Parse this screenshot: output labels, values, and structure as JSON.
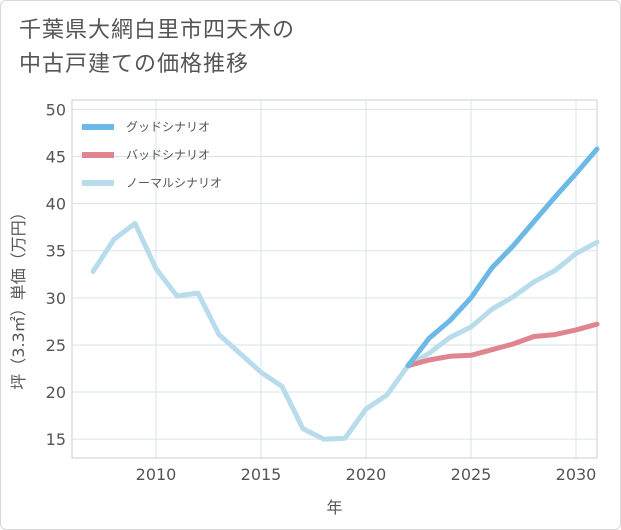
{
  "title_line1": "千葉県大網白里市四天木の",
  "title_line2": "中古戸建ての価格推移",
  "chart_data": {
    "type": "line",
    "title": "千葉県大網白里市四天木の中古戸建ての価格推移",
    "xlabel": "年",
    "ylabel": "坪（3.3㎡）単価（万円）",
    "xlim": [
      2006,
      2031
    ],
    "ylim": [
      13,
      51
    ],
    "x_ticks": [
      2010,
      2015,
      2020,
      2025,
      2030
    ],
    "y_ticks": [
      15,
      20,
      25,
      30,
      35,
      40,
      45,
      50
    ],
    "legend_position": "top-left",
    "series": [
      {
        "name": "グッドシナリオ",
        "color": "#6cb8e6",
        "x": [
          2022,
          2023,
          2024,
          2025,
          2026,
          2027,
          2028,
          2029,
          2030,
          2031
        ],
        "y": [
          22.8,
          25.7,
          27.6,
          30.0,
          33.2,
          35.5,
          38.1,
          40.7,
          43.2,
          45.8
        ]
      },
      {
        "name": "バッドシナリオ",
        "color": "#e0848f",
        "x": [
          2022,
          2023,
          2024,
          2025,
          2026,
          2027,
          2028,
          2029,
          2030,
          2031
        ],
        "y": [
          22.8,
          23.4,
          23.8,
          23.9,
          24.5,
          25.1,
          25.9,
          26.1,
          26.6,
          27.2
        ]
      },
      {
        "name": "ノーマルシナリオ",
        "color": "#b9dcec",
        "x": [
          2007,
          2008,
          2009,
          2010,
          2011,
          2012,
          2013,
          2014,
          2015,
          2016,
          2017,
          2018,
          2019,
          2020,
          2021,
          2022,
          2023,
          2024,
          2025,
          2026,
          2027,
          2028,
          2029,
          2030,
          2031
        ],
        "y": [
          32.8,
          36.2,
          37.9,
          33.1,
          30.2,
          30.5,
          26.1,
          24.1,
          22.1,
          20.6,
          16.1,
          15.0,
          15.1,
          18.2,
          19.7,
          22.8,
          24.1,
          25.8,
          26.9,
          28.8,
          30.1,
          31.7,
          32.9,
          34.7,
          35.9
        ]
      }
    ]
  }
}
